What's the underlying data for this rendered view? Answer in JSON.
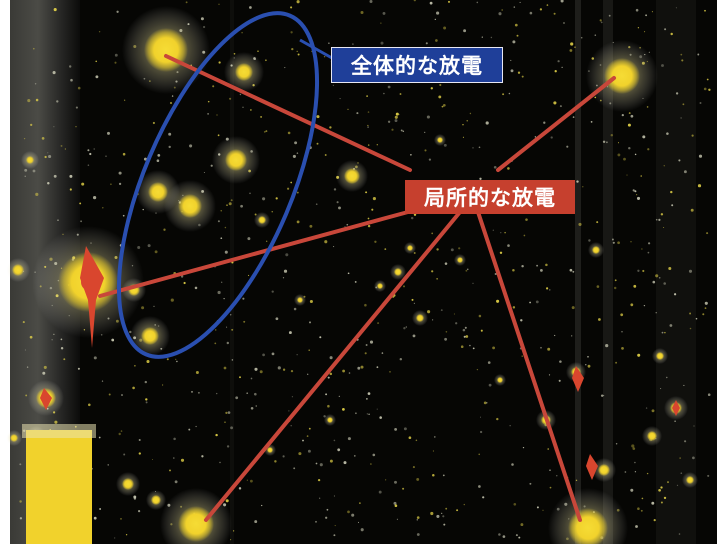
{
  "labels": {
    "global_discharge": "全体的な放電",
    "local_discharge": "局所的な放電"
  },
  "colors": {
    "background": "#060604",
    "spot_core": "#f1d22c",
    "spot_halo": "#f7e86a",
    "hot_core": "#d9462e",
    "pointer_line": "#c8473a",
    "ellipse_outline": "#2a4fb0",
    "label_global_bg": "#1f3f99",
    "label_local_bg": "#c6402e"
  },
  "icons": {
    "ellipse": "ellipse-annotation",
    "pointer": "pointer-line"
  }
}
